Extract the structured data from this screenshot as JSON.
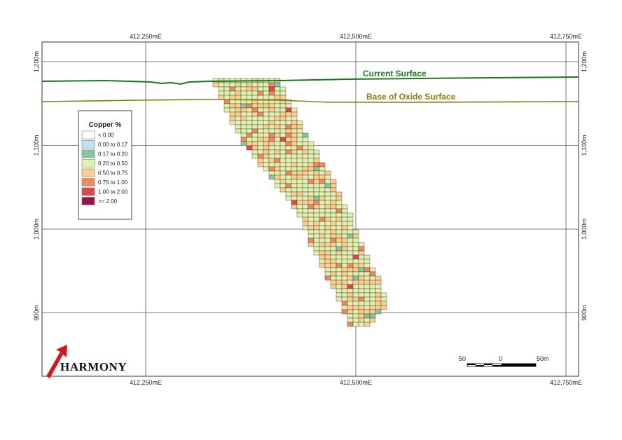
{
  "section": {
    "eastings": [
      {
        "value": 412250,
        "label": "412,250mE"
      },
      {
        "value": 412500,
        "label": "412,500mE"
      },
      {
        "value": 412750,
        "label": "412,750mE"
      }
    ],
    "elevations": [
      {
        "value": 1200,
        "label": "1,200m"
      },
      {
        "value": 1100,
        "label": "1,100m"
      },
      {
        "value": 1000,
        "label": "1,000m"
      },
      {
        "value": 900,
        "label": "900m"
      }
    ],
    "surfaces": [
      "Current Surface",
      "Base of Oxide Surface"
    ],
    "legend": {
      "title": "Copper %",
      "items": [
        {
          "label": "< 0.00",
          "color": "#ffffff"
        },
        {
          "label": "0.00 to 0.17",
          "color": "#bfe4f5"
        },
        {
          "label": "0.17 to 0.20",
          "color": "#86c8a0"
        },
        {
          "label": "0.20 to 0.50",
          "color": "#e3f1ae"
        },
        {
          "label": "0.50 to 0.75",
          "color": "#fccf8c"
        },
        {
          "label": "0.75 to 1.00",
          "color": "#f18a5a"
        },
        {
          "label": "1.00 to 2.00",
          "color": "#e0474c"
        },
        {
          "label": ">= 2.00",
          "color": "#a0104a"
        }
      ]
    },
    "scale_bar": {
      "labels": [
        "50",
        "0",
        "50m"
      ]
    },
    "logo": "HARMONY"
  }
}
